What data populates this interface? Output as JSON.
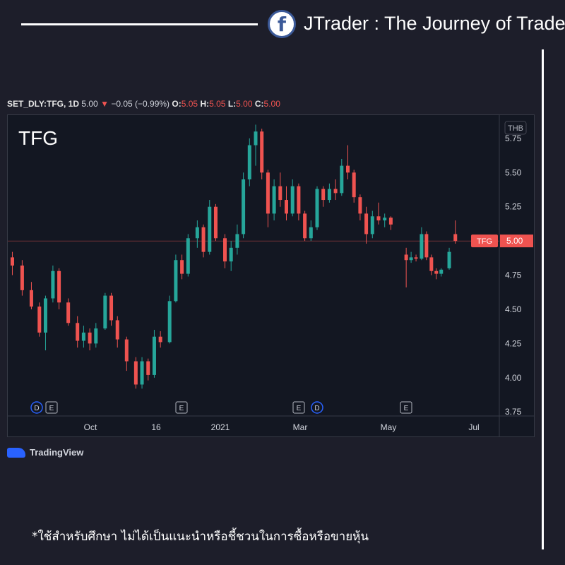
{
  "brand": {
    "icon": "facebook-icon",
    "title": "JTrader : The Journey of Trader"
  },
  "header": {
    "symbol": "SET_DLY:TFG, 1D",
    "last": "5.00",
    "arrow": "▼",
    "change": "−0.05 (−0.99%)",
    "o_label": "O:",
    "o_value": "5.05",
    "h_label": "H:",
    "h_value": "5.05",
    "l_label": "L:",
    "l_value": "5.00",
    "c_label": "C:",
    "c_value": "5.00"
  },
  "chart_data": {
    "type": "candlestick",
    "title": "TFG",
    "currency": "THB",
    "price_label": {
      "symbol": "TFG",
      "value": "5.00",
      "price": 5.0
    },
    "ylim": [
      3.72,
      5.92
    ],
    "y_ticks": [
      "5.75",
      "5.50",
      "5.25",
      "5.00",
      "4.75",
      "4.50",
      "4.25",
      "4.00",
      "3.75"
    ],
    "x_ticks": [
      "Oct",
      "16",
      "2021",
      "Mar",
      "May",
      "Jul"
    ],
    "events": [
      "D",
      "E",
      "E",
      "E",
      "D",
      "E"
    ],
    "series": [
      {
        "candles": [
          {
            "o": 4.88,
            "h": 4.92,
            "l": 4.75,
            "c": 4.82
          },
          {
            "o": 4.82,
            "h": 4.86,
            "l": 4.6,
            "c": 4.64
          },
          {
            "o": 4.64,
            "h": 4.7,
            "l": 4.5,
            "c": 4.52
          },
          {
            "o": 4.52,
            "h": 4.55,
            "l": 4.3,
            "c": 4.33
          },
          {
            "o": 4.33,
            "h": 4.6,
            "l": 4.2,
            "c": 4.58
          },
          {
            "o": 4.58,
            "h": 4.82,
            "l": 4.55,
            "c": 4.78
          },
          {
            "o": 4.78,
            "h": 4.8,
            "l": 4.5,
            "c": 4.55
          },
          {
            "o": 4.55,
            "h": 4.58,
            "l": 4.38,
            "c": 4.4
          },
          {
            "o": 4.4,
            "h": 4.45,
            "l": 4.22,
            "c": 4.27
          },
          {
            "o": 4.27,
            "h": 4.38,
            "l": 4.22,
            "c": 4.33
          },
          {
            "o": 4.33,
            "h": 4.36,
            "l": 4.2,
            "c": 4.25
          },
          {
            "o": 4.25,
            "h": 4.4,
            "l": 4.22,
            "c": 4.36
          },
          {
            "o": 4.36,
            "h": 4.62,
            "l": 4.35,
            "c": 4.6
          },
          {
            "o": 4.6,
            "h": 4.62,
            "l": 4.38,
            "c": 4.42
          },
          {
            "o": 4.42,
            "h": 4.45,
            "l": 4.22,
            "c": 4.28
          },
          {
            "o": 4.28,
            "h": 4.3,
            "l": 4.05,
            "c": 4.12
          },
          {
            "o": 4.12,
            "h": 4.15,
            "l": 3.92,
            "c": 3.95
          },
          {
            "o": 3.95,
            "h": 4.15,
            "l": 3.92,
            "c": 4.12
          },
          {
            "o": 4.12,
            "h": 4.14,
            "l": 3.98,
            "c": 4.02
          },
          {
            "o": 4.02,
            "h": 4.35,
            "l": 4.0,
            "c": 4.3
          },
          {
            "o": 4.3,
            "h": 4.34,
            "l": 4.22,
            "c": 4.26
          },
          {
            "o": 4.26,
            "h": 4.6,
            "l": 4.25,
            "c": 4.56
          },
          {
            "o": 4.56,
            "h": 4.9,
            "l": 4.55,
            "c": 4.86
          },
          {
            "o": 4.86,
            "h": 4.9,
            "l": 4.72,
            "c": 4.76
          },
          {
            "o": 4.76,
            "h": 5.05,
            "l": 4.74,
            "c": 5.02
          },
          {
            "o": 5.02,
            "h": 5.15,
            "l": 4.95,
            "c": 5.1
          },
          {
            "o": 5.1,
            "h": 5.12,
            "l": 4.88,
            "c": 4.92
          },
          {
            "o": 4.92,
            "h": 5.3,
            "l": 4.9,
            "c": 5.25
          },
          {
            "o": 5.25,
            "h": 5.27,
            "l": 5.0,
            "c": 5.02
          },
          {
            "o": 5.02,
            "h": 5.05,
            "l": 4.8,
            "c": 4.85
          },
          {
            "o": 4.85,
            "h": 5.0,
            "l": 4.78,
            "c": 4.95
          },
          {
            "o": 4.95,
            "h": 5.12,
            "l": 4.9,
            "c": 5.05
          },
          {
            "o": 5.05,
            "h": 5.5,
            "l": 5.02,
            "c": 5.45
          },
          {
            "o": 5.45,
            "h": 5.75,
            "l": 5.4,
            "c": 5.7
          },
          {
            "o": 5.7,
            "h": 5.85,
            "l": 5.55,
            "c": 5.8
          },
          {
            "o": 5.8,
            "h": 5.82,
            "l": 5.45,
            "c": 5.5
          },
          {
            "o": 5.5,
            "h": 5.52,
            "l": 5.1,
            "c": 5.2
          },
          {
            "o": 5.2,
            "h": 5.45,
            "l": 5.15,
            "c": 5.4
          },
          {
            "o": 5.4,
            "h": 5.5,
            "l": 5.25,
            "c": 5.3
          },
          {
            "o": 5.3,
            "h": 5.4,
            "l": 5.15,
            "c": 5.2
          },
          {
            "o": 5.2,
            "h": 5.45,
            "l": 5.18,
            "c": 5.4
          },
          {
            "o": 5.4,
            "h": 5.42,
            "l": 5.15,
            "c": 5.2
          },
          {
            "o": 5.2,
            "h": 5.22,
            "l": 5.0,
            "c": 5.02
          },
          {
            "o": 5.02,
            "h": 5.15,
            "l": 5.0,
            "c": 5.1
          },
          {
            "o": 5.1,
            "h": 5.4,
            "l": 5.08,
            "c": 5.38
          },
          {
            "o": 5.38,
            "h": 5.4,
            "l": 5.25,
            "c": 5.3
          },
          {
            "o": 5.3,
            "h": 5.42,
            "l": 5.28,
            "c": 5.38
          },
          {
            "o": 5.38,
            "h": 5.45,
            "l": 5.3,
            "c": 5.35
          },
          {
            "o": 5.35,
            "h": 5.6,
            "l": 5.33,
            "c": 5.55
          },
          {
            "o": 5.55,
            "h": 5.7,
            "l": 5.45,
            "c": 5.5
          },
          {
            "o": 5.5,
            "h": 5.52,
            "l": 5.28,
            "c": 5.32
          },
          {
            "o": 5.32,
            "h": 5.34,
            "l": 5.15,
            "c": 5.2
          },
          {
            "o": 5.2,
            "h": 5.25,
            "l": 4.98,
            "c": 5.05
          },
          {
            "o": 5.05,
            "h": 5.22,
            "l": 5.02,
            "c": 5.18
          },
          {
            "o": 5.18,
            "h": 5.28,
            "l": 5.12,
            "c": 5.15
          },
          {
            "o": 5.15,
            "h": 5.2,
            "l": 5.1,
            "c": 5.17
          },
          {
            "o": 5.17,
            "h": 5.18,
            "l": 5.08,
            "c": 5.12
          },
          {
            "o": 4.9,
            "h": 4.95,
            "l": 4.66,
            "c": 4.86
          },
          {
            "o": 4.86,
            "h": 4.92,
            "l": 4.84,
            "c": 4.88
          },
          {
            "o": 4.88,
            "h": 4.9,
            "l": 4.85,
            "c": 4.87
          },
          {
            "o": 4.87,
            "h": 5.1,
            "l": 4.86,
            "c": 5.05
          },
          {
            "o": 5.05,
            "h": 5.07,
            "l": 4.86,
            "c": 4.88
          },
          {
            "o": 4.88,
            "h": 4.9,
            "l": 4.75,
            "c": 4.78
          },
          {
            "o": 4.78,
            "h": 4.8,
            "l": 4.72,
            "c": 4.76
          },
          {
            "o": 4.76,
            "h": 4.8,
            "l": 4.74,
            "c": 4.79
          },
          {
            "o": 4.8,
            "h": 4.95,
            "l": 4.79,
            "c": 4.92
          },
          {
            "o": 5.05,
            "h": 5.15,
            "l": 4.98,
            "c": 5.0
          }
        ],
        "x_positions": [
          0.4,
          2,
          3.5,
          4.8,
          5.8,
          7,
          8,
          9.5,
          11,
          12,
          13,
          14,
          15.5,
          16.5,
          17.5,
          19,
          20.5,
          21.5,
          22.5,
          23.5,
          24.5,
          26,
          27,
          28,
          29,
          30.5,
          31.5,
          32.5,
          33.5,
          35,
          36,
          37,
          38,
          39,
          40,
          41,
          42,
          43,
          44,
          45,
          46,
          47,
          48,
          49,
          50,
          51,
          52,
          53,
          54,
          55,
          56,
          57,
          58,
          59,
          60,
          61,
          62,
          64.5,
          65.3,
          66.1,
          67,
          67.8,
          68.6,
          69.4,
          70.2,
          71.5,
          72.5
        ]
      }
    ]
  }
}
